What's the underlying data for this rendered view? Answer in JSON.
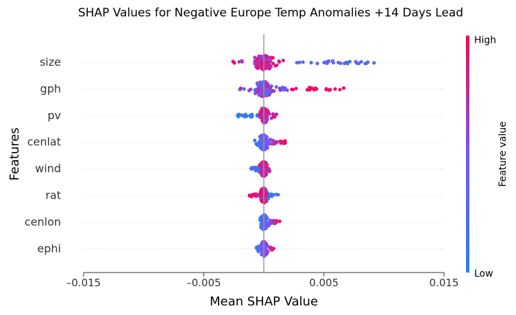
{
  "chart_data": {
    "type": "scatter",
    "subtype": "shap-beeswarm",
    "title": "SHAP Values for Negative Europe Temp Anomalies +14 Days Lead",
    "xlabel": "Mean SHAP Value",
    "ylabel": "Features",
    "xlim": [
      -0.015,
      0.015
    ],
    "xticks": [
      "–0.015",
      "–0.005",
      "0.005",
      "0.015"
    ],
    "xtick_values": [
      -0.015,
      -0.005,
      0.005,
      0.015
    ],
    "zero_line": 0,
    "colorbar": {
      "label": "Feature value",
      "high": "High",
      "low": "Low",
      "low_color": "#1e88e5",
      "high_color": "#ff0052"
    },
    "features": [
      {
        "name": "size",
        "shap_min": -0.0027,
        "shap_max": 0.0092,
        "spread": 0.0008
      },
      {
        "name": "gph",
        "shap_min": -0.0021,
        "shap_max": 0.0068,
        "spread": 0.0007
      },
      {
        "name": "pv",
        "shap_min": -0.0024,
        "shap_max": 0.0012,
        "spread": 0.0004
      },
      {
        "name": "cenlat",
        "shap_min": -0.0009,
        "shap_max": 0.0019,
        "spread": 0.0004
      },
      {
        "name": "wind",
        "shap_min": -0.0011,
        "shap_max": 0.0005,
        "spread": 0.0003
      },
      {
        "name": "rat",
        "shap_min": -0.0013,
        "shap_max": 0.0012,
        "spread": 0.0003
      },
      {
        "name": "cenlon",
        "shap_min": -0.0003,
        "shap_max": 0.0014,
        "spread": 0.0003
      },
      {
        "name": "ephi",
        "shap_min": -0.0007,
        "shap_max": 0.0009,
        "spread": 0.0003
      }
    ]
  }
}
